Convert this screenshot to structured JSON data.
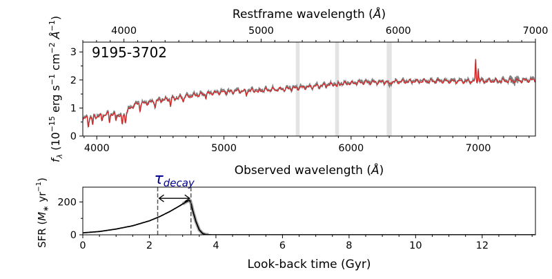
{
  "chart_data": [
    {
      "type": "line",
      "id": "spectrum",
      "annotation": "9195-3702",
      "xlabel": "Observed wavelength (Å)",
      "x2label": "Restframe wavelength (Å)",
      "ylabel": "f_λ (10^-15 erg s^-1 cm^-2 Å^-1)",
      "xlim": [
        3890,
        7450
      ],
      "x2lim": [
        3700,
        7000
      ],
      "ylim": [
        0,
        3.35
      ],
      "xticks": [
        "4000",
        "5000",
        "6000",
        "7000"
      ],
      "x2ticks": [
        "4000",
        "5000",
        "6000",
        "7000"
      ],
      "yticks": [
        "0",
        "1",
        "2",
        "3"
      ],
      "masked_regions": [
        [
          5565,
          5595
        ],
        [
          5875,
          5905
        ],
        [
          6280,
          6320
        ]
      ],
      "continuum": {
        "x": [
          3890,
          4000,
          4100,
          4200,
          4300,
          4400,
          4500,
          4700,
          4900,
          5100,
          5300,
          5500,
          5700,
          5900,
          6100,
          6300,
          6500,
          6700,
          6900,
          7100,
          7300,
          7450
        ],
        "y": [
          0.65,
          0.72,
          0.82,
          0.75,
          1.15,
          1.2,
          1.3,
          1.42,
          1.55,
          1.62,
          1.65,
          1.7,
          1.78,
          1.88,
          1.93,
          1.95,
          1.97,
          1.98,
          1.97,
          1.98,
          1.99,
          2.02
        ]
      },
      "absorption_features": [
        {
          "x": 3933,
          "depth": 0.3
        },
        {
          "x": 3968,
          "depth": 0.3
        },
        {
          "x": 4040,
          "depth": 0.2
        },
        {
          "x": 4100,
          "depth": 0.3
        },
        {
          "x": 4150,
          "depth": 0.2
        },
        {
          "x": 4200,
          "depth": 0.35
        },
        {
          "x": 4225,
          "depth": 0.35
        },
        {
          "x": 4340,
          "depth": 0.2
        },
        {
          "x": 4460,
          "depth": 0.2
        },
        {
          "x": 4580,
          "depth": 0.25
        },
        {
          "x": 4680,
          "depth": 0.15
        },
        {
          "x": 4860,
          "depth": 0.12
        },
        {
          "x": 5175,
          "depth": 0.15
        },
        {
          "x": 5270,
          "depth": 0.12
        },
        {
          "x": 5890,
          "depth": 0.12
        },
        {
          "x": 6300,
          "depth": 0.12
        }
      ],
      "emission_features": [
        {
          "x": 6980,
          "height": 0.75
        },
        {
          "x": 7000,
          "height": 0.45
        }
      ],
      "series": [
        {
          "name": "",
          "color": "#7f7f7f",
          "role": "observed"
        },
        {
          "name": "",
          "color": "#d62728",
          "role": "model"
        }
      ]
    },
    {
      "type": "line",
      "id": "sfh",
      "xlabel": "Look-back time (Gyr)",
      "ylabel": "SFR (M_* yr^-1)",
      "xlim": [
        0,
        13.6
      ],
      "ylim": [
        0,
        290
      ],
      "xticks": [
        "0",
        "2",
        "4",
        "6",
        "8",
        "10",
        "12"
      ],
      "yticks": [
        "0",
        "200"
      ],
      "series": [
        {
          "name": "",
          "color": "#000000",
          "x": [
            0,
            0.5,
            1.0,
            1.5,
            2.0,
            2.3,
            2.6,
            2.9,
            3.1,
            3.2,
            3.25,
            3.3,
            3.4,
            3.5,
            3.6,
            3.7,
            3.9,
            13.6
          ],
          "y": [
            12,
            20,
            35,
            55,
            85,
            110,
            140,
            175,
            200,
            210,
            195,
            150,
            80,
            30,
            8,
            1,
            0,
            0
          ]
        }
      ],
      "annotations": {
        "tau_label": "decay",
        "tau_range": [
          2.25,
          3.25
        ],
        "tau_color": "#00008b"
      }
    }
  ]
}
